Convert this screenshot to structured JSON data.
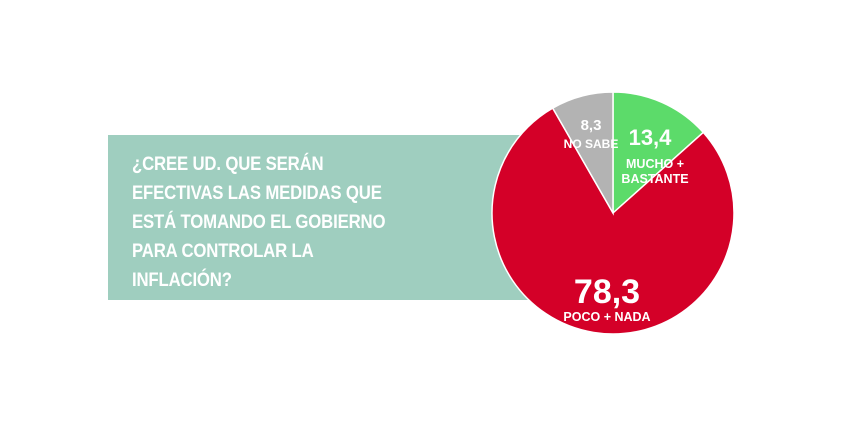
{
  "question": "¿CREE UD. QUE SERÁN\nEFECTIVAS LAS MEDIDAS QUE\nESTÁ TOMANDO EL GOBIERNO\nPARA CONTROLAR LA\nINFLACIÓN?",
  "colors": {
    "box": "#9fcebf",
    "text": "#ffffff"
  },
  "chart_data": {
    "type": "pie",
    "title": "",
    "start_angle_deg": 0,
    "slices": [
      {
        "value": 13.4,
        "value_label": "13,4",
        "label": "MUCHO +\nBASTANTE",
        "color": "#5cdb6a"
      },
      {
        "value": 78.3,
        "value_label": "78,3",
        "label": "POCO + NADA",
        "color": "#d40028"
      },
      {
        "value": 8.3,
        "value_label": "8,3",
        "label": "NO SABE",
        "color": "#b3b3b3"
      }
    ]
  }
}
